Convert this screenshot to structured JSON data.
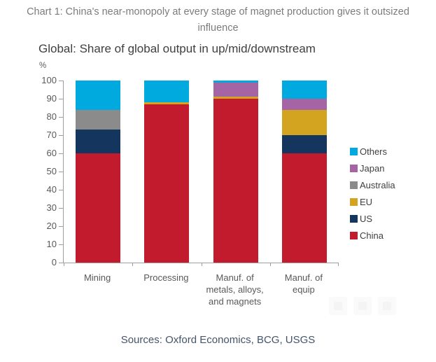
{
  "header": {
    "title": "Chart 1: China's near-monopoly at every stage of magnet production gives it outsized influence"
  },
  "chart_data": {
    "type": "bar",
    "stacked": true,
    "title": "Global: Share of global output in up/mid/downstream",
    "xlabel": "",
    "ylabel": "%",
    "ylim": [
      0,
      100
    ],
    "yticks": [
      0,
      10,
      20,
      30,
      40,
      50,
      60,
      70,
      80,
      90,
      100
    ],
    "grid": false,
    "legend_position": "right",
    "legend_order": [
      "Others",
      "Japan",
      "Australia",
      "EU",
      "US",
      "China"
    ],
    "categories": [
      "Mining",
      "Processing",
      "Manuf. of metals, alloys, and magnets",
      "Manuf. of equip"
    ],
    "category_label_lines": [
      [
        "Mining"
      ],
      [
        "Processing"
      ],
      [
        "Manuf. of",
        "metals, alloys,",
        "and magnets"
      ],
      [
        "Manuf. of",
        "equip"
      ]
    ],
    "series": [
      {
        "name": "China",
        "color": "#C21B2E",
        "values": [
          60,
          87,
          90,
          60
        ]
      },
      {
        "name": "US",
        "color": "#14365E",
        "values": [
          13,
          0,
          0,
          10
        ]
      },
      {
        "name": "EU",
        "color": "#D2A41F",
        "values": [
          0,
          1,
          1,
          14
        ]
      },
      {
        "name": "Australia",
        "color": "#8B8B8B",
        "values": [
          11,
          0,
          0,
          0
        ]
      },
      {
        "name": "Japan",
        "color": "#A564A4",
        "values": [
          0,
          0,
          8,
          6
        ]
      },
      {
        "name": "Others",
        "color": "#00AADE",
        "values": [
          16,
          12,
          1,
          10
        ]
      }
    ]
  },
  "watermark_icons": [
    "faded-share-icon-1",
    "faded-share-icon-2",
    "faded-share-icon-3"
  ],
  "footer": {
    "sources": "Sources: Oxford Economics, BCG, USGS"
  },
  "colors": {
    "axis": "#9E9E9E",
    "tick_label": "#595959",
    "title_text": "#7C7C7C",
    "subtitle_text": "#3F3F3F",
    "footer_text": "#44546A"
  }
}
